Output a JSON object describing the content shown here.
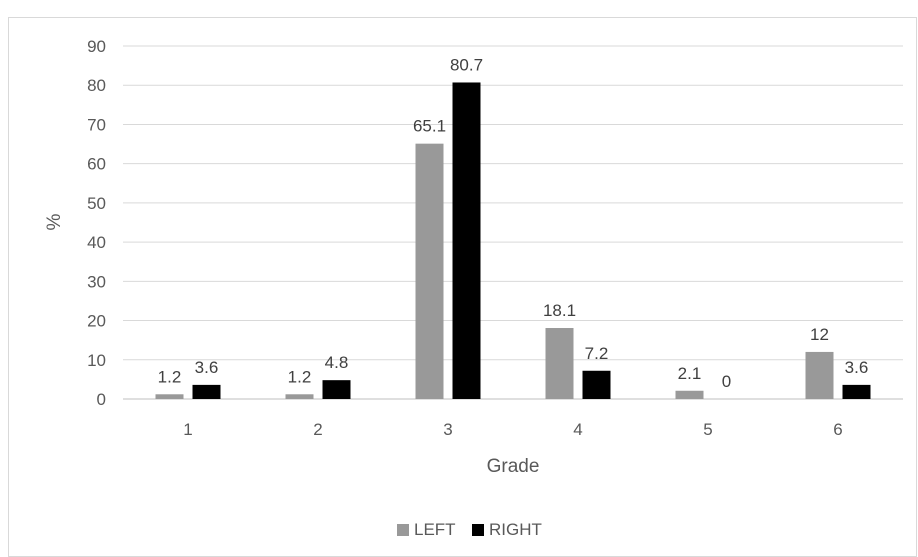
{
  "chart_data": {
    "type": "bar",
    "categories": [
      "1",
      "2",
      "3",
      "4",
      "5",
      "6"
    ],
    "series": [
      {
        "name": "LEFT",
        "color": "#999999",
        "values": [
          1.2,
          1.2,
          65.1,
          18.1,
          2.1,
          12
        ]
      },
      {
        "name": "RIGHT",
        "color": "#000000",
        "values": [
          3.6,
          4.8,
          80.7,
          7.2,
          0,
          3.6
        ]
      }
    ],
    "xlabel": "Grade",
    "ylabel": "%",
    "ylim": [
      0,
      90
    ],
    "yticks": [
      0,
      10,
      20,
      30,
      40,
      50,
      60,
      70,
      80,
      90
    ],
    "grid": true,
    "legend_position": "bottom",
    "gridline_color": "#d9d9d9"
  }
}
